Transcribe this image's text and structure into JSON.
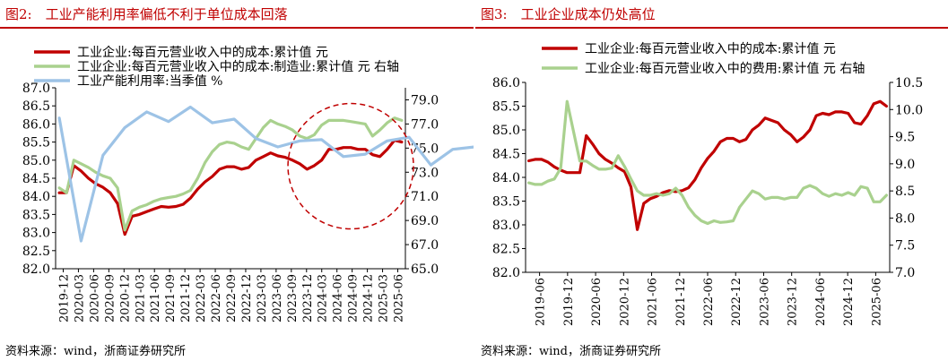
{
  "figures": [
    {
      "title": "图2:　工业产能利用率偏低不利于单位成本回落",
      "source": "资料来源：wind，浙商证券研究所"
    },
    {
      "title": "图3:　工业企业成本仍处高位",
      "source": "资料来源：wind，浙商证券研究所"
    }
  ],
  "chart_data": [
    {
      "type": "line",
      "title": "图2:　工业产能利用率偏低不利于单位成本回落",
      "legend_position": "top-left",
      "y_left": {
        "min": 82.0,
        "max": 87.0,
        "ticks": [
          "87.0",
          "86.5",
          "86.0",
          "85.5",
          "85.0",
          "84.5",
          "84.0",
          "83.5",
          "83.0",
          "82.5",
          "82.0"
        ]
      },
      "y_right": {
        "min": 65.0,
        "max": 80.0,
        "ticks": [
          "79.0",
          "77.0",
          "75.0",
          "73.0",
          "71.0",
          "69.0",
          "67.0",
          "65.0"
        ]
      },
      "x_ticks": [
        "2019-12",
        "2020-03",
        "2020-06",
        "2020-09",
        "2020-12",
        "2021-03",
        "2021-06",
        "2021-09",
        "2021-12",
        "2022-03",
        "2022-06",
        "2022-09",
        "2022-12",
        "2023-03",
        "2023-06",
        "2023-09",
        "2023-12",
        "2024-03",
        "2024-06",
        "2024-09",
        "2024-12",
        "2025-03",
        "2025-06"
      ],
      "annotation": "dashed red circle highlighting 2024-03 to 2025-06",
      "series": [
        {
          "name": "工业企业:每百元营业收入中的成本:累计值 元",
          "color": "#c00000",
          "axis": "left",
          "x_start": 0,
          "x_step": 1,
          "values": [
            84.1,
            84.1,
            84.85,
            84.7,
            84.5,
            84.35,
            84.25,
            84.1,
            83.8,
            82.95,
            83.45,
            83.5,
            83.58,
            83.65,
            83.72,
            83.7,
            83.72,
            83.78,
            83.95,
            84.2,
            84.4,
            84.55,
            84.75,
            84.82,
            84.82,
            84.75,
            84.8,
            85.0,
            85.1,
            85.2,
            85.12,
            85.08,
            85.0,
            84.9,
            84.75,
            84.85,
            85.0,
            85.3,
            85.3,
            85.35,
            85.35,
            85.3,
            85.3,
            85.15,
            85.1,
            85.3,
            85.55,
            85.5
          ]
        },
        {
          "name": "工业企业:每百元营业收入中的成本:制造业:累计值 元 右轴",
          "color": "#a9d18e",
          "axis": "right",
          "x_start": 0,
          "x_step": 1,
          "values": [
            71.7,
            71.3,
            74.0,
            73.7,
            73.4,
            73.0,
            72.7,
            72.5,
            71.7,
            68.2,
            69.8,
            70.1,
            70.3,
            70.6,
            70.8,
            70.9,
            71.0,
            71.2,
            71.5,
            72.5,
            73.8,
            74.7,
            75.3,
            75.5,
            75.4,
            75.1,
            74.9,
            75.8,
            76.7,
            77.3,
            77.0,
            76.8,
            76.5,
            76.0,
            75.8,
            76.1,
            76.9,
            77.3,
            77.3,
            77.3,
            77.2,
            77.1,
            77.0,
            76.0,
            76.5,
            77.1,
            77.5,
            77.3
          ]
        },
        {
          "name": "工业产能利用率:当季值 %",
          "color": "#9dc3e6",
          "axis": "right",
          "x_start": 0,
          "x_step": 3,
          "values": [
            77.5,
            67.3,
            74.4,
            76.7,
            78.0,
            77.2,
            78.4,
            77.1,
            77.4,
            75.8,
            75.1,
            75.6,
            75.7,
            74.3,
            74.5,
            75.6,
            75.9,
            73.6,
            74.9,
            75.1,
            76.2,
            74.1,
            74.0
          ]
        }
      ]
    },
    {
      "type": "line",
      "title": "图3:　工业企业成本仍处高位",
      "legend_position": "top-left",
      "y_left": {
        "min": 82.0,
        "max": 86.0,
        "ticks": [
          "86.0",
          "85.5",
          "85.0",
          "84.5",
          "84.0",
          "83.5",
          "83.0",
          "82.5",
          "82.0"
        ]
      },
      "y_right": {
        "min": 7.0,
        "max": 10.5,
        "ticks": [
          "10.5",
          "10.0",
          "9.5",
          "9.0",
          "8.5",
          "8.0",
          "7.5",
          "7.0"
        ]
      },
      "x_ticks": [
        "2019-06",
        "2019-12",
        "2020-06",
        "2020-12",
        "2021-06",
        "2021-12",
        "2022-06",
        "2022-12",
        "2023-06",
        "2023-12",
        "2024-06",
        "2024-12",
        "2025-06"
      ],
      "series": [
        {
          "name": "工业企业:每百元营业收入中的成本:累计值 元",
          "color": "#c00000",
          "axis": "left",
          "x_start": 0,
          "x_step": 1,
          "values": [
            84.35,
            84.38,
            84.38,
            84.32,
            84.22,
            84.15,
            84.1,
            84.1,
            84.1,
            84.88,
            84.7,
            84.5,
            84.38,
            84.3,
            84.2,
            84.12,
            83.8,
            82.9,
            83.45,
            83.55,
            83.6,
            83.68,
            83.72,
            83.7,
            83.72,
            83.78,
            83.95,
            84.2,
            84.4,
            84.55,
            84.75,
            84.82,
            84.82,
            84.75,
            84.8,
            85.0,
            85.1,
            85.25,
            85.2,
            85.15,
            85.0,
            84.9,
            84.75,
            84.85,
            85.0,
            85.3,
            85.35,
            85.32,
            85.38,
            85.38,
            85.35,
            85.15,
            85.12,
            85.3,
            85.55,
            85.6,
            85.5
          ]
        },
        {
          "name": "工业企业:每百元营业收入中的费用:累计值 元 右轴",
          "color": "#a9d18e",
          "axis": "right",
          "x_start": 0,
          "x_step": 1,
          "values": [
            8.65,
            8.62,
            8.62,
            8.68,
            8.72,
            8.92,
            10.15,
            9.6,
            9.05,
            9.05,
            8.97,
            8.9,
            8.9,
            8.92,
            9.15,
            8.95,
            8.72,
            8.5,
            8.42,
            8.42,
            8.45,
            8.42,
            8.45,
            8.55,
            8.42,
            8.2,
            8.05,
            7.95,
            7.9,
            7.95,
            7.92,
            7.93,
            7.95,
            8.2,
            8.35,
            8.5,
            8.45,
            8.35,
            8.38,
            8.38,
            8.35,
            8.38,
            8.38,
            8.55,
            8.6,
            8.55,
            8.45,
            8.4,
            8.45,
            8.42,
            8.47,
            8.42,
            8.58,
            8.55,
            8.3,
            8.3,
            8.42
          ]
        }
      ]
    }
  ]
}
